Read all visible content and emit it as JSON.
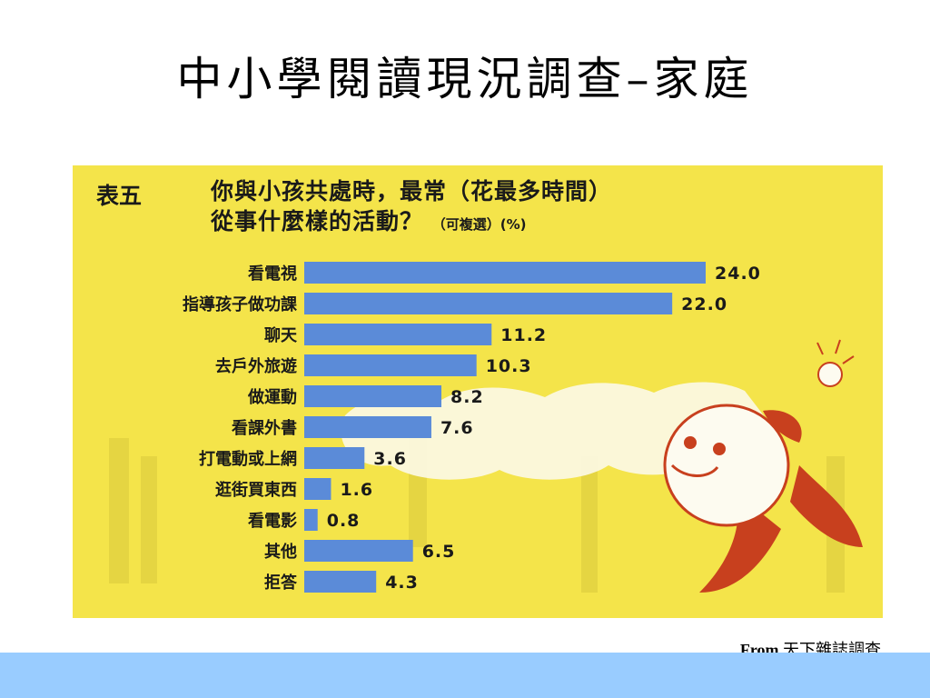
{
  "slide": {
    "title": "中小學閱讀現況調查–家庭",
    "source_prefix": "From",
    "source_name": "天下雜誌調查"
  },
  "figure": {
    "table_label": "表五",
    "question_line1": "你與小孩共處時，最常（花最多時間）",
    "question_line2": "從事什麼樣的活動？",
    "question_note": "（可複選）(%)"
  },
  "colors": {
    "bar": "#5b8bd8",
    "background": "#f4e44a",
    "band": "#99ccff",
    "figure_red": "#c8401e"
  },
  "chart_data": {
    "type": "bar",
    "orientation": "horizontal",
    "categories": [
      "看電視",
      "指導孩子做功課",
      "聊天",
      "去戶外旅遊",
      "做運動",
      "看課外書",
      "打電動或上網",
      "逛街買東西",
      "看電影",
      "其他",
      "拒答"
    ],
    "values": [
      24.0,
      22.0,
      11.2,
      10.3,
      8.2,
      7.6,
      3.6,
      1.6,
      0.8,
      6.5,
      4.3
    ],
    "value_labels": [
      "24.0",
      "22.0",
      "11.2",
      "10.3",
      "8.2",
      "7.6",
      "3.6",
      "1.6",
      "0.8",
      "6.5",
      "4.3"
    ],
    "title": "你與小孩共處時，最常（花最多時間）從事什麼樣的活動？",
    "xlabel": "",
    "ylabel": "",
    "xlim": [
      0,
      24
    ]
  }
}
